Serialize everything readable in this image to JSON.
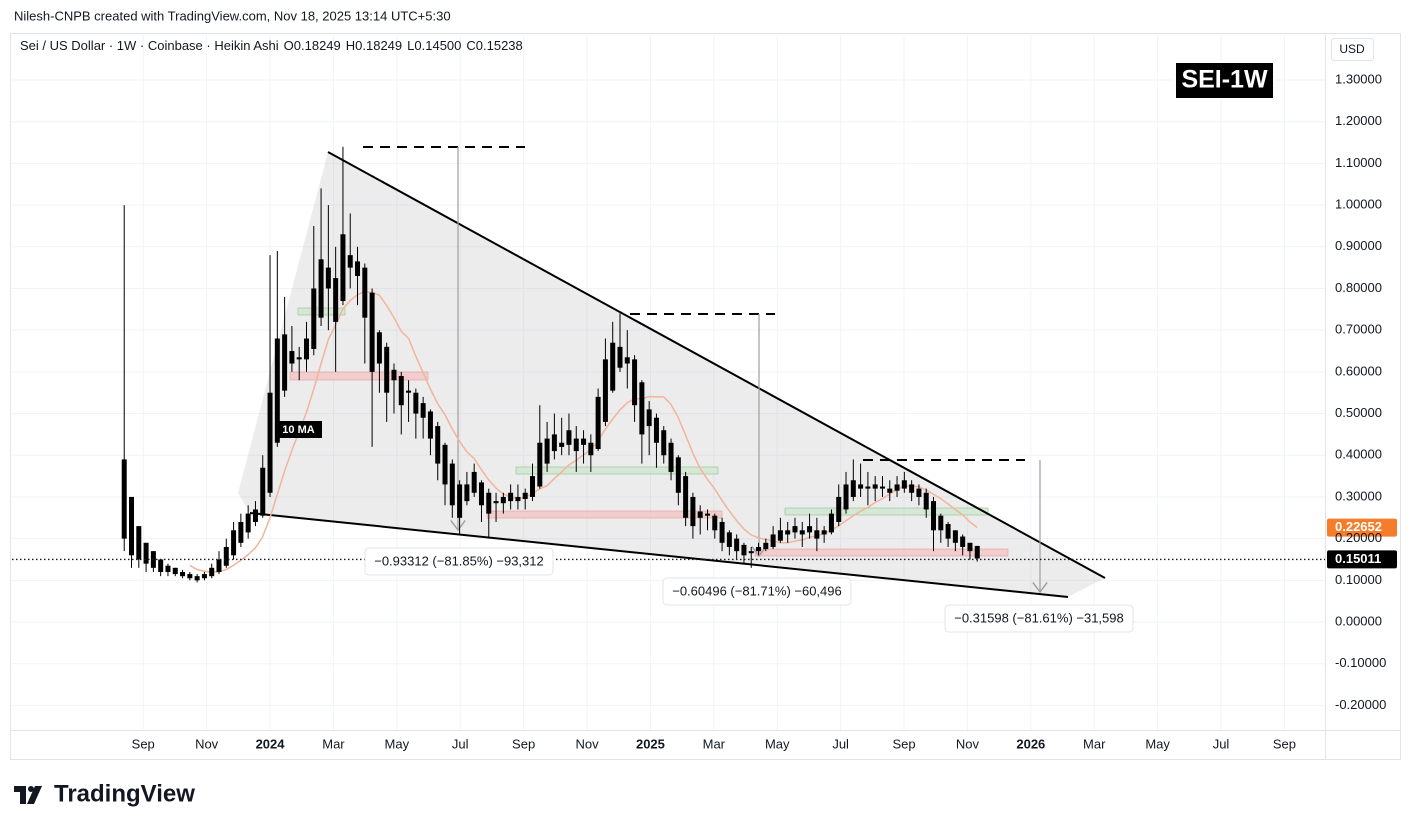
{
  "header": {
    "credit": "Nilesh-CNPB created with TradingView.com, Nov 18, 2025 13:14 UTC+5:30"
  },
  "footer": {
    "brand": "TradingView"
  },
  "chart_data": {
    "type": "candlestick",
    "title": "Sei / US Dollar · 1W · Coinbase · Heikin Ashi",
    "ohlc_legend": [
      "O0.18249",
      "H0.18249",
      "L0.14500",
      "C0.15238"
    ],
    "badge": "SEI-1W",
    "currency": "USD",
    "color": "#000000",
    "x": [
      -4.6,
      -4.37,
      -4.14,
      -3.91,
      -3.68,
      -3.45,
      -3.22,
      -2.99,
      -2.76,
      -2.53,
      -2.3,
      -2.07,
      -1.84,
      -1.61,
      -1.38,
      -1.15,
      -0.92,
      -0.69,
      -0.46,
      -0.23,
      0,
      0.23,
      0.46,
      0.69,
      0.92,
      1.15,
      1.38,
      1.61,
      1.84,
      2.07,
      2.3,
      2.53,
      2.76,
      2.99,
      3.22,
      3.45,
      3.68,
      3.91,
      4.14,
      4.37,
      4.6,
      4.83,
      5.06,
      5.29,
      5.52,
      5.75,
      5.98,
      6.21,
      6.44,
      6.67,
      6.9,
      7.13,
      7.36,
      7.59,
      7.82,
      8.05,
      8.28,
      8.51,
      8.74,
      8.97,
      9.2,
      9.43,
      9.66,
      9.89,
      10.12,
      10.35,
      10.58,
      10.81,
      11.04,
      11.27,
      11.5,
      11.73,
      11.96,
      12.19,
      12.42,
      12.65,
      12.88,
      13.11,
      13.34,
      13.57,
      13.8,
      14.03,
      14.26,
      14.49,
      14.72,
      14.95,
      15.18,
      15.41,
      15.64,
      15.87,
      16.1,
      16.33,
      16.56,
      16.79,
      17.02,
      17.25,
      17.48,
      17.71,
      17.94,
      18.17,
      18.4,
      18.63,
      18.86,
      19.09,
      19.32,
      19.55,
      19.78,
      20.01,
      20.24,
      20.47,
      20.7,
      20.93,
      21.16,
      21.39,
      21.62,
      21.85,
      22.08,
      22.31
    ],
    "open": [
      0.39,
      0.3,
      0.23,
      0.19,
      0.17,
      0.15,
      0.135,
      0.13,
      0.12,
      0.115,
      0.11,
      0.105,
      0.11,
      0.12,
      0.135,
      0.16,
      0.19,
      0.215,
      0.24,
      0.255,
      0.31,
      0.43,
      0.555,
      0.62,
      0.635,
      0.63,
      0.655,
      0.73,
      0.8,
      0.825,
      0.77,
      0.85,
      0.865,
      0.85,
      0.79,
      0.695,
      0.66,
      0.605,
      0.59,
      0.555,
      0.55,
      0.525,
      0.505,
      0.47,
      0.425,
      0.38,
      0.33,
      0.29,
      0.31,
      0.335,
      0.31,
      0.285,
      0.285,
      0.29,
      0.3,
      0.295,
      0.3,
      0.325,
      0.38,
      0.41,
      0.43,
      0.425,
      0.44,
      0.425,
      0.43,
      0.415,
      0.48,
      0.555,
      0.61,
      0.635,
      0.63,
      0.575,
      0.51,
      0.49,
      0.46,
      0.43,
      0.395,
      0.35,
      0.3,
      0.265,
      0.255,
      0.255,
      0.24,
      0.215,
      0.2,
      0.185,
      0.17,
      0.17,
      0.175,
      0.18,
      0.195,
      0.21,
      0.215,
      0.22,
      0.215,
      0.22,
      0.21,
      0.215,
      0.24,
      0.27,
      0.3,
      0.32,
      0.325,
      0.32,
      0.325,
      0.32,
      0.315,
      0.32,
      0.33,
      0.32,
      0.31,
      0.29,
      0.255,
      0.235,
      0.22,
      0.205,
      0.19,
      0.18249
    ],
    "high": [
      1.0,
      0.3,
      0.23,
      0.19,
      0.17,
      0.15,
      0.14,
      0.13,
      0.125,
      0.12,
      0.115,
      0.12,
      0.14,
      0.17,
      0.2,
      0.24,
      0.26,
      0.28,
      0.29,
      0.4,
      0.88,
      0.89,
      0.78,
      0.71,
      0.66,
      0.72,
      0.95,
      1.04,
      1.0,
      0.9,
      1.14,
      0.98,
      0.9,
      0.86,
      0.8,
      0.7,
      0.67,
      0.62,
      0.6,
      0.58,
      0.56,
      0.54,
      0.51,
      0.48,
      0.43,
      0.39,
      0.34,
      0.36,
      0.38,
      0.34,
      0.32,
      0.31,
      0.31,
      0.33,
      0.33,
      0.32,
      0.38,
      0.52,
      0.48,
      0.5,
      0.49,
      0.5,
      0.47,
      0.46,
      0.45,
      0.56,
      0.68,
      0.72,
      0.74,
      0.7,
      0.64,
      0.58,
      0.53,
      0.5,
      0.47,
      0.44,
      0.4,
      0.36,
      0.31,
      0.28,
      0.27,
      0.26,
      0.25,
      0.22,
      0.21,
      0.19,
      0.18,
      0.19,
      0.2,
      0.23,
      0.25,
      0.24,
      0.25,
      0.24,
      0.26,
      0.25,
      0.23,
      0.27,
      0.33,
      0.36,
      0.39,
      0.38,
      0.36,
      0.35,
      0.35,
      0.34,
      0.35,
      0.36,
      0.34,
      0.33,
      0.32,
      0.3,
      0.26,
      0.24,
      0.22,
      0.21,
      0.19,
      0.18249
    ],
    "low": [
      0.17,
      0.13,
      0.13,
      0.12,
      0.12,
      0.11,
      0.11,
      0.11,
      0.105,
      0.1,
      0.095,
      0.1,
      0.105,
      0.115,
      0.13,
      0.15,
      0.18,
      0.2,
      0.23,
      0.25,
      0.3,
      0.42,
      0.54,
      0.6,
      0.58,
      0.6,
      0.64,
      0.71,
      0.7,
      0.6,
      0.76,
      0.8,
      0.76,
      0.62,
      0.42,
      0.55,
      0.48,
      0.5,
      0.45,
      0.48,
      0.44,
      0.44,
      0.4,
      0.34,
      0.28,
      0.25,
      0.21,
      0.28,
      0.3,
      0.24,
      0.2,
      0.24,
      0.26,
      0.27,
      0.27,
      0.27,
      0.29,
      0.32,
      0.36,
      0.39,
      0.4,
      0.4,
      0.36,
      0.38,
      0.36,
      0.41,
      0.47,
      0.55,
      0.6,
      0.56,
      0.48,
      0.38,
      0.4,
      0.37,
      0.38,
      0.34,
      0.28,
      0.23,
      0.2,
      0.21,
      0.22,
      0.2,
      0.17,
      0.16,
      0.15,
      0.14,
      0.13,
      0.16,
      0.17,
      0.175,
      0.19,
      0.19,
      0.2,
      0.18,
      0.2,
      0.17,
      0.19,
      0.21,
      0.23,
      0.26,
      0.29,
      0.3,
      0.28,
      0.29,
      0.3,
      0.29,
      0.3,
      0.31,
      0.29,
      0.28,
      0.25,
      0.17,
      0.19,
      0.18,
      0.17,
      0.16,
      0.15,
      0.145
    ],
    "close": [
      0.2,
      0.16,
      0.15,
      0.14,
      0.13,
      0.12,
      0.12,
      0.115,
      0.11,
      0.105,
      0.1,
      0.115,
      0.13,
      0.15,
      0.18,
      0.22,
      0.24,
      0.26,
      0.27,
      0.37,
      0.55,
      0.68,
      0.69,
      0.65,
      0.63,
      0.68,
      0.8,
      0.87,
      0.85,
      0.72,
      0.93,
      0.88,
      0.83,
      0.73,
      0.6,
      0.62,
      0.55,
      0.58,
      0.52,
      0.55,
      0.5,
      0.49,
      0.44,
      0.38,
      0.33,
      0.28,
      0.25,
      0.33,
      0.36,
      0.28,
      0.26,
      0.29,
      0.3,
      0.31,
      0.29,
      0.31,
      0.35,
      0.43,
      0.44,
      0.45,
      0.42,
      0.46,
      0.41,
      0.44,
      0.4,
      0.54,
      0.63,
      0.67,
      0.66,
      0.62,
      0.52,
      0.45,
      0.47,
      0.43,
      0.4,
      0.36,
      0.31,
      0.25,
      0.23,
      0.25,
      0.26,
      0.22,
      0.19,
      0.18,
      0.17,
      0.16,
      0.165,
      0.18,
      0.19,
      0.21,
      0.22,
      0.22,
      0.23,
      0.21,
      0.23,
      0.2,
      0.22,
      0.26,
      0.3,
      0.33,
      0.34,
      0.33,
      0.32,
      0.33,
      0.32,
      0.31,
      0.33,
      0.34,
      0.31,
      0.3,
      0.27,
      0.22,
      0.22,
      0.2,
      0.19,
      0.18,
      0.17,
      0.15238
    ],
    "overlays": [
      {
        "name": "10 MA",
        "color": "#f2b49a",
        "label_color": "#f57c2a",
        "values": [
          null,
          null,
          null,
          null,
          null,
          null,
          null,
          null,
          null,
          0.136,
          0.126,
          0.122,
          0.12,
          0.121,
          0.126,
          0.136,
          0.148,
          0.162,
          0.178,
          0.205,
          0.25,
          0.306,
          0.362,
          0.412,
          0.457,
          0.503,
          0.559,
          0.62,
          0.678,
          0.713,
          0.751,
          0.771,
          0.785,
          0.793,
          0.79,
          0.784,
          0.759,
          0.73,
          0.697,
          0.68,
          0.637,
          0.598,
          0.559,
          0.524,
          0.497,
          0.463,
          0.433,
          0.408,
          0.392,
          0.365,
          0.341,
          0.321,
          0.307,
          0.3,
          0.296,
          0.299,
          0.309,
          0.319,
          0.327,
          0.344,
          0.36,
          0.377,
          0.388,
          0.401,
          0.412,
          0.435,
          0.463,
          0.487,
          0.509,
          0.526,
          0.536,
          0.535,
          0.541,
          0.54,
          0.54,
          0.522,
          0.49,
          0.448,
          0.405,
          0.368,
          0.342,
          0.319,
          0.291,
          0.266,
          0.243,
          0.223,
          0.209,
          0.202,
          0.198,
          0.194,
          0.19,
          0.19,
          0.194,
          0.197,
          0.203,
          0.207,
          0.212,
          0.22,
          0.231,
          0.243,
          0.255,
          0.266,
          0.275,
          0.287,
          0.296,
          0.307,
          0.318,
          0.326,
          0.327,
          0.324,
          0.317,
          0.306,
          0.296,
          0.283,
          0.27,
          0.257,
          0.24,
          0.22652
        ]
      }
    ],
    "last_price": 0.15011,
    "annotations": [
      "−0.93312 (−81.85%) −93,312",
      "−0.60496 (−81.71%) −60,496",
      "−0.31598 (−81.61%) −31,598"
    ],
    "xlim": [
      -8.14,
      33.28
    ],
    "xticks": [
      {
        "value": -4,
        "label": "Sep"
      },
      {
        "value": -2,
        "label": "Nov"
      },
      {
        "value": 0,
        "label": "2024"
      },
      {
        "value": 2,
        "label": "Mar"
      },
      {
        "value": 4,
        "label": "May"
      },
      {
        "value": 6,
        "label": "Jul"
      },
      {
        "value": 8,
        "label": "Sep"
      },
      {
        "value": 10,
        "label": "Nov"
      },
      {
        "value": 12,
        "label": "2025"
      },
      {
        "value": 14,
        "label": "Mar"
      },
      {
        "value": 16,
        "label": "May"
      },
      {
        "value": 18,
        "label": "Jul"
      },
      {
        "value": 20,
        "label": "Sep"
      },
      {
        "value": 22,
        "label": "Nov"
      },
      {
        "value": 24,
        "label": "2026"
      },
      {
        "value": 26,
        "label": "Mar"
      },
      {
        "value": 28,
        "label": "May"
      },
      {
        "value": 30,
        "label": "Jul"
      },
      {
        "value": 32,
        "label": "Sep"
      }
    ],
    "ylim": [
      -0.259,
      1.408
    ],
    "yticks": [
      {
        "value": 1.3,
        "label": "1.30000"
      },
      {
        "value": 1.2,
        "label": "1.20000"
      },
      {
        "value": 1.1,
        "label": "1.10000"
      },
      {
        "value": 1.0,
        "label": "1.00000"
      },
      {
        "value": 0.9,
        "label": "0.90000"
      },
      {
        "value": 0.8,
        "label": "0.80000"
      },
      {
        "value": 0.7,
        "label": "0.70000"
      },
      {
        "value": 0.6,
        "label": "0.60000"
      },
      {
        "value": 0.5,
        "label": "0.50000"
      },
      {
        "value": 0.4,
        "label": "0.40000"
      },
      {
        "value": 0.3,
        "label": "0.30000"
      },
      {
        "value": 0.2,
        "label": "0.20000"
      },
      {
        "value": 0.1,
        "label": "0.10000"
      },
      {
        "value": 0,
        "label": "0.00000"
      },
      {
        "value": -0.1,
        "label": "-0.10000"
      },
      {
        "value": -0.2,
        "label": "-0.20000"
      }
    ],
    "grid": true
  }
}
